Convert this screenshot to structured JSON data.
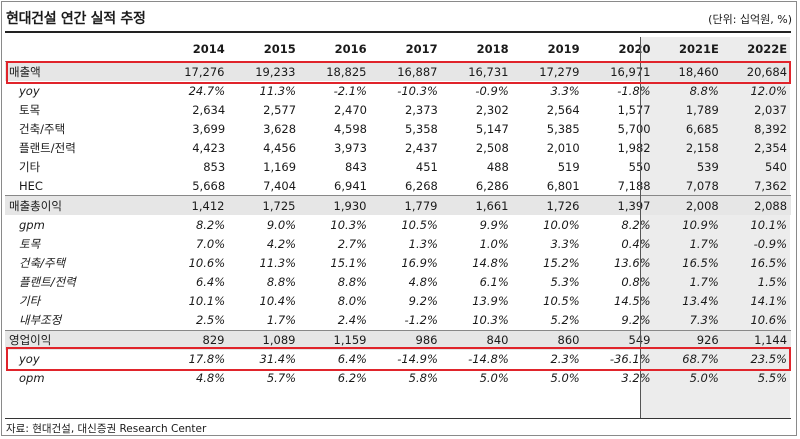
{
  "title": "현대건설 연간 실적 추정",
  "unit": "(단위: 십억원, %)",
  "source": "자료: 현대건설, 대신증권 Research Center",
  "highlight_color": "#e0242b",
  "columns": [
    "2014",
    "2015",
    "2016",
    "2017",
    "2018",
    "2019",
    "2020",
    "2021E",
    "2022E"
  ],
  "rows": [
    {
      "label": "매출액",
      "values": [
        "17,276",
        "19,233",
        "18,825",
        "16,887",
        "16,731",
        "17,279",
        "16,971",
        "18,460",
        "20,684"
      ]
    },
    {
      "label": "yoy",
      "values": [
        "24.7%",
        "11.3%",
        "-2.1%",
        "-10.3%",
        "-0.9%",
        "3.3%",
        "-1.8%",
        "8.8%",
        "12.0%"
      ]
    },
    {
      "label": "토목",
      "values": [
        "2,634",
        "2,577",
        "2,470",
        "2,373",
        "2,302",
        "2,564",
        "1,577",
        "1,789",
        "2,037"
      ]
    },
    {
      "label": "건축/주택",
      "values": [
        "3,699",
        "3,628",
        "4,598",
        "5,358",
        "5,147",
        "5,385",
        "5,700",
        "6,685",
        "8,392"
      ]
    },
    {
      "label": "플랜트/전력",
      "values": [
        "4,423",
        "4,456",
        "3,973",
        "2,437",
        "2,508",
        "2,010",
        "1,982",
        "2,158",
        "2,354"
      ]
    },
    {
      "label": "기타",
      "values": [
        "853",
        "1,169",
        "843",
        "451",
        "488",
        "519",
        "550",
        "539",
        "540"
      ]
    },
    {
      "label": "HEC",
      "values": [
        "5,668",
        "7,404",
        "6,941",
        "6,268",
        "6,286",
        "6,801",
        "7,188",
        "7,078",
        "7,362"
      ]
    },
    {
      "label": "매출총이익",
      "values": [
        "1,412",
        "1,725",
        "1,930",
        "1,779",
        "1,661",
        "1,726",
        "1,397",
        "2,008",
        "2,088"
      ]
    },
    {
      "label": "gpm",
      "values": [
        "8.2%",
        "9.0%",
        "10.3%",
        "10.5%",
        "9.9%",
        "10.0%",
        "8.2%",
        "10.9%",
        "10.1%"
      ]
    },
    {
      "label": "토목",
      "values": [
        "7.0%",
        "4.2%",
        "2.7%",
        "1.3%",
        "1.0%",
        "3.3%",
        "0.4%",
        "1.7%",
        "-0.9%"
      ]
    },
    {
      "label": "건축/주택",
      "values": [
        "10.6%",
        "11.3%",
        "15.1%",
        "16.9%",
        "14.8%",
        "15.2%",
        "13.6%",
        "16.5%",
        "16.5%"
      ]
    },
    {
      "label": "플랜트/전력",
      "values": [
        "6.4%",
        "8.8%",
        "8.8%",
        "4.8%",
        "6.1%",
        "5.3%",
        "0.8%",
        "1.7%",
        "1.5%"
      ]
    },
    {
      "label": "기타",
      "values": [
        "10.1%",
        "10.4%",
        "8.0%",
        "9.2%",
        "13.9%",
        "10.5%",
        "14.5%",
        "13.4%",
        "14.1%"
      ]
    },
    {
      "label": "내부조정",
      "values": [
        "2.5%",
        "1.7%",
        "2.4%",
        "-1.2%",
        "10.3%",
        "5.2%",
        "9.2%",
        "7.3%",
        "10.6%"
      ]
    },
    {
      "label": "영업이익",
      "values": [
        "829",
        "1,089",
        "1,159",
        "986",
        "840",
        "860",
        "549",
        "926",
        "1,144"
      ]
    },
    {
      "label": "yoy",
      "values": [
        "17.8%",
        "31.4%",
        "6.4%",
        "-14.9%",
        "-14.8%",
        "2.3%",
        "-36.1%",
        "68.7%",
        "23.5%"
      ]
    },
    {
      "label": "opm",
      "values": [
        "4.8%",
        "5.7%",
        "6.2%",
        "5.8%",
        "5.0%",
        "5.0%",
        "3.2%",
        "5.0%",
        "5.5%"
      ]
    }
  ]
}
